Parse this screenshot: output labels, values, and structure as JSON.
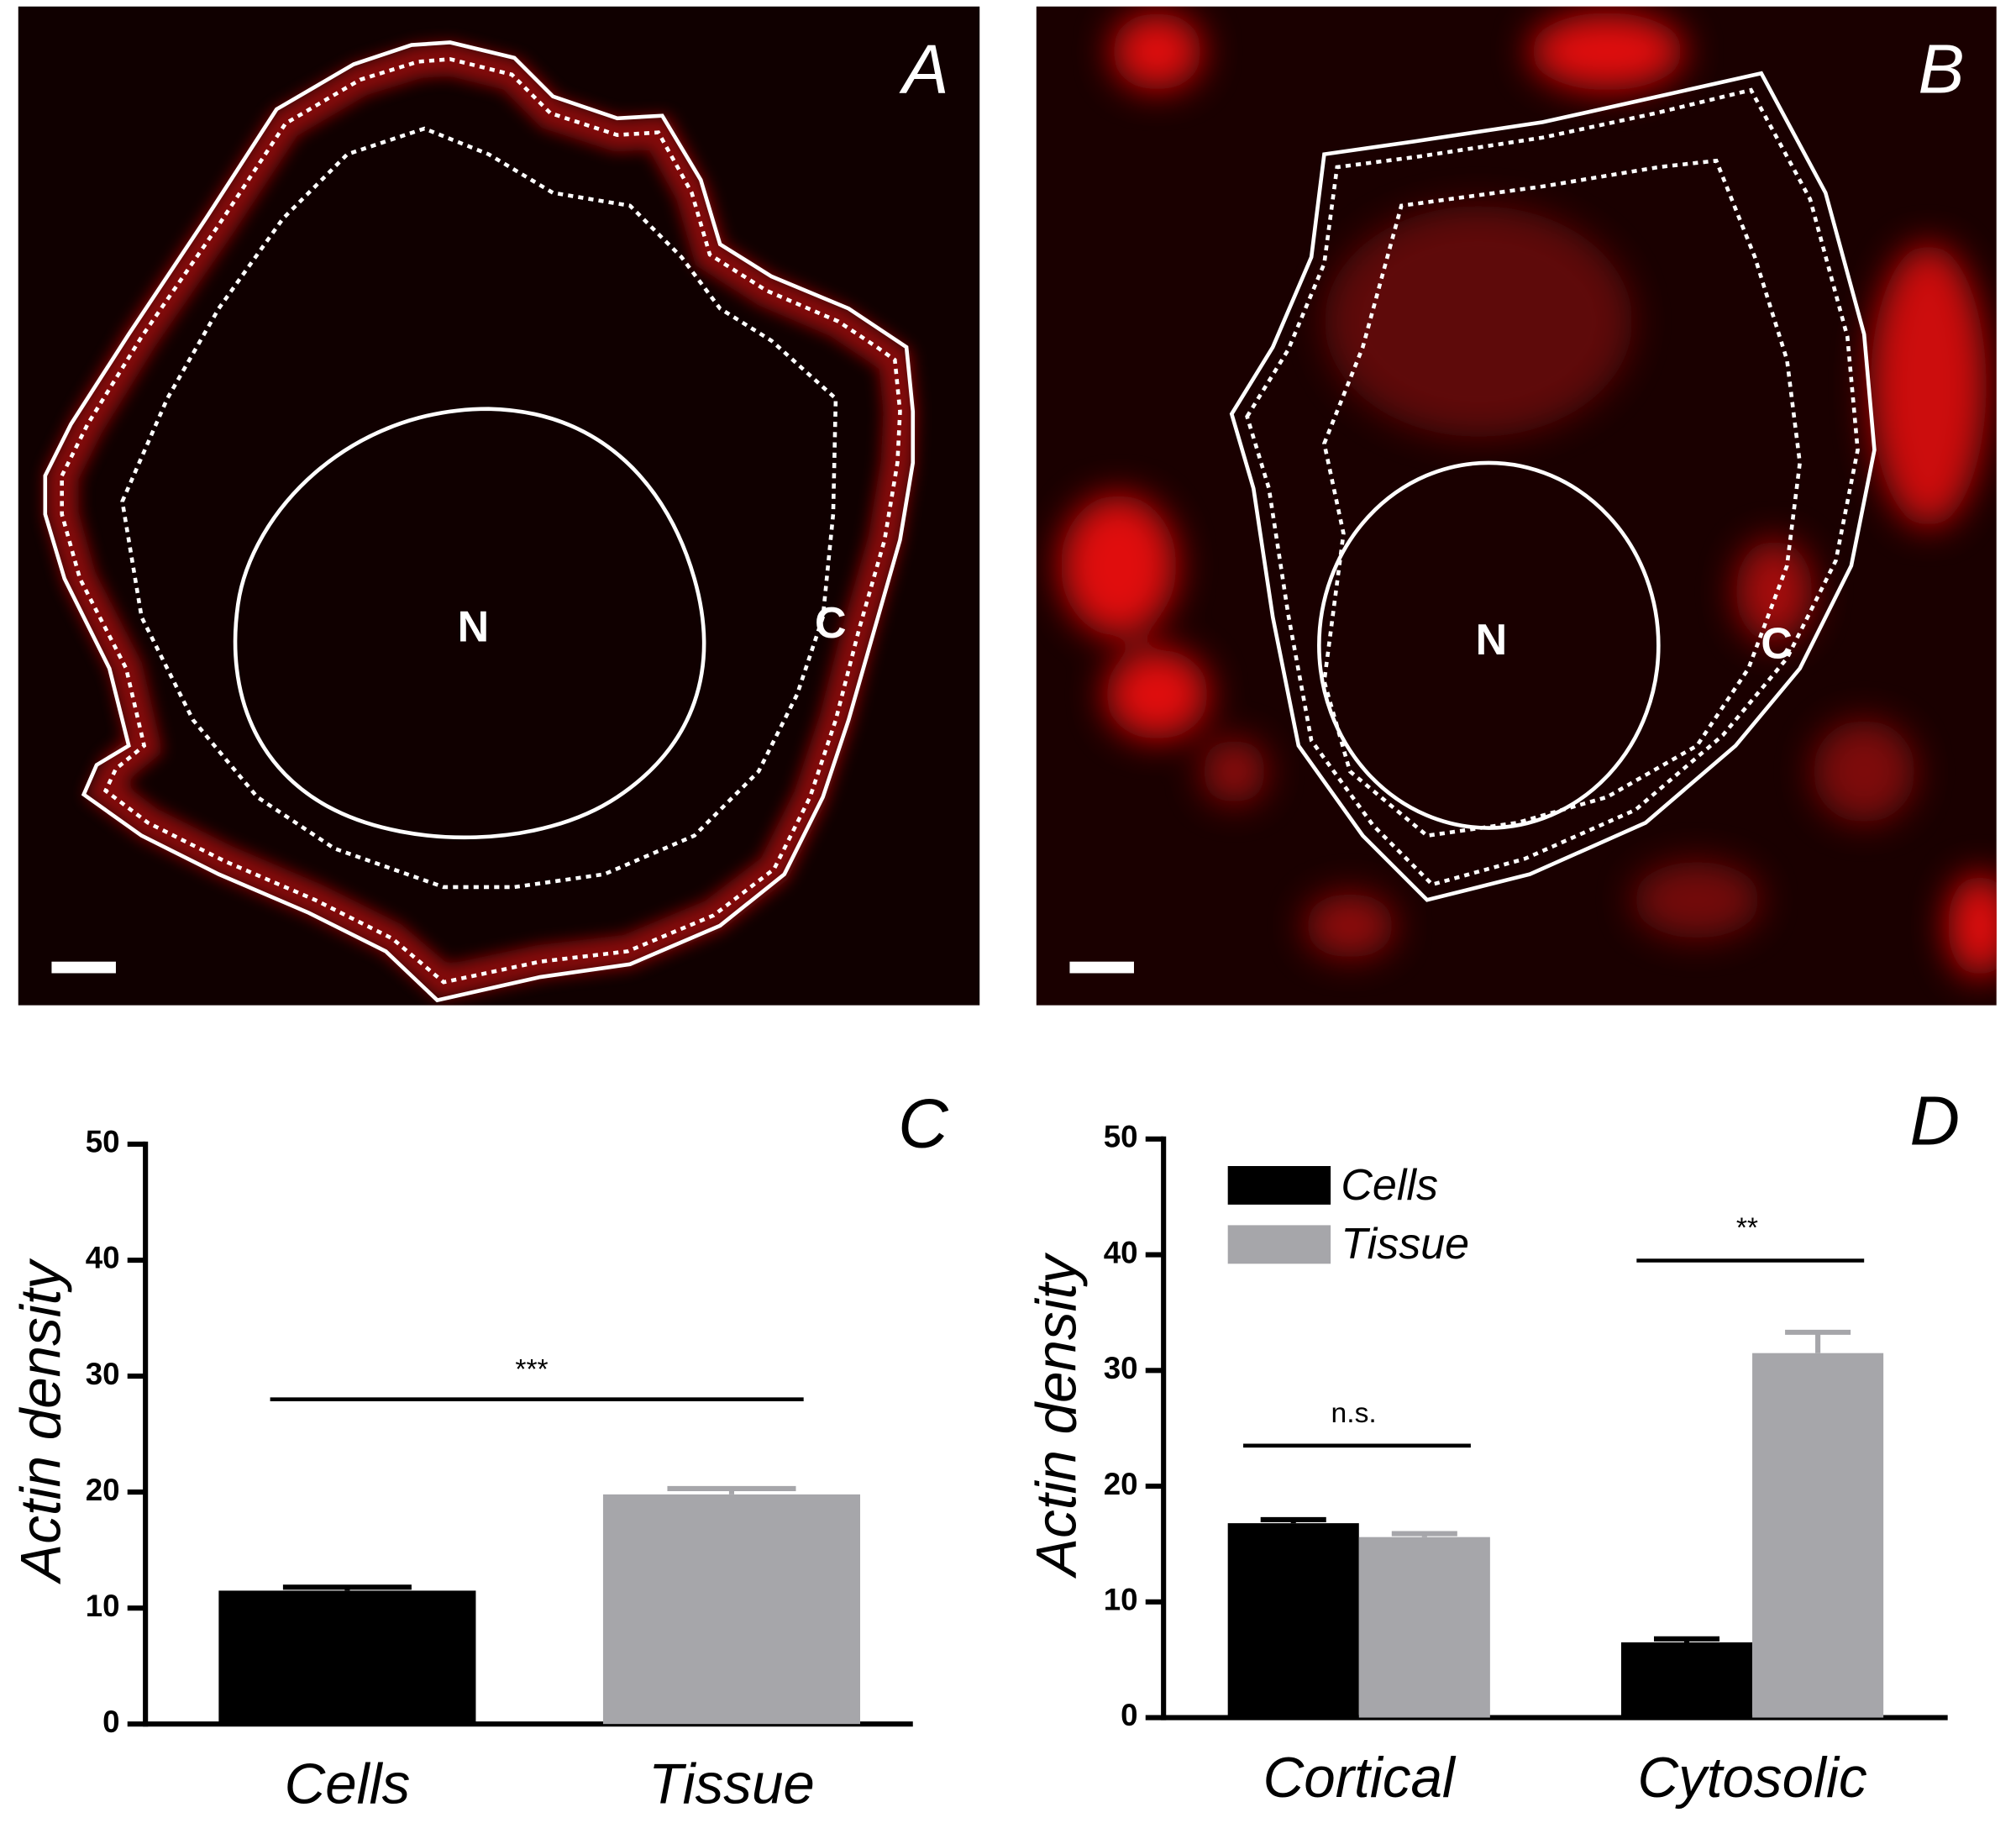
{
  "images": [
    {
      "label": "A",
      "nucleus_label": "N",
      "cortex_label": "C"
    },
    {
      "label": "B",
      "nucleus_label": "N",
      "cortex_label": "C"
    }
  ],
  "chart_data": [
    {
      "type": "bar",
      "title": "C",
      "y_label": "Actin density",
      "categories": [
        "Cells",
        "Tissue"
      ],
      "values": [
        11.5,
        19.8
      ],
      "errors": [
        0.3,
        0.5
      ],
      "colors": [
        "#000000",
        "#a6a6aa"
      ],
      "ylim": [
        0,
        50
      ],
      "yticks": [
        0,
        10,
        20,
        30,
        40,
        50
      ],
      "significance": "***",
      "significance_y": 28
    },
    {
      "type": "bar",
      "title": "D",
      "y_label": "Actin density",
      "categories": [
        "Cortical",
        "Cytosolic"
      ],
      "series": [
        {
          "name": "Cells",
          "color": "#000000",
          "values": [
            16.8,
            6.5
          ],
          "errors": [
            0.3,
            0.3
          ]
        },
        {
          "name": "Tissue",
          "color": "#a6a6aa",
          "values": [
            15.6,
            31.5
          ],
          "errors": [
            0.3,
            1.8
          ]
        }
      ],
      "ylim": [
        0,
        50
      ],
      "yticks": [
        0,
        10,
        20,
        30,
        40,
        50
      ],
      "significance": [
        "n.s.",
        "**"
      ],
      "significance_y": [
        23.5,
        39.5
      ]
    }
  ]
}
